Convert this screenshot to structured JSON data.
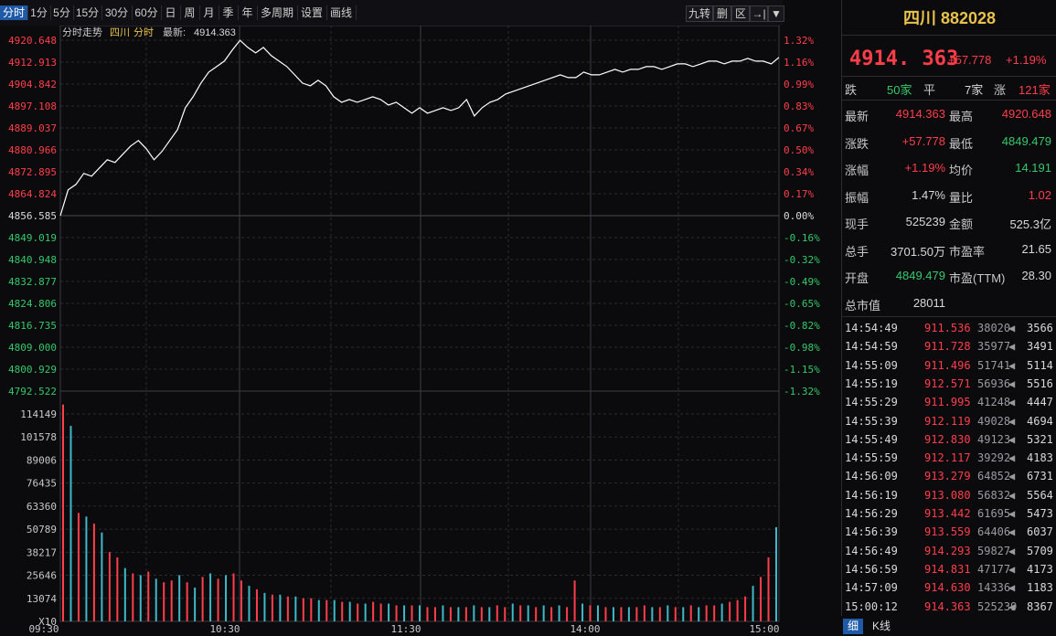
{
  "toolbar": {
    "periods": [
      "分时",
      "1分",
      "5分",
      "15分",
      "30分",
      "60分",
      "日",
      "周",
      "月",
      "季",
      "年",
      "多周期",
      "设置",
      "画线"
    ],
    "active_index": 0,
    "right_buttons": [
      "九转",
      "删",
      "区",
      "→|",
      "▼"
    ]
  },
  "chart_header": {
    "label": "分时走势",
    "name": "四川",
    "mode": "分时",
    "latest_label": "最新:",
    "latest_value": "4914.363"
  },
  "colors": {
    "up": "#ff3e4a",
    "down": "#35c86a",
    "price_line": "#ffffff",
    "grid": "#2a2a30",
    "title": "#e8c24a",
    "accent": "#1e5aa8"
  },
  "chart_data": {
    "type": "line",
    "title": "",
    "price_axis": [
      "4920.648",
      "4912.913",
      "4904.842",
      "4897.108",
      "4889.037",
      "4880.966",
      "4872.895",
      "4864.824",
      "4856.585",
      "4849.019",
      "4840.948",
      "4832.877",
      "4824.806",
      "4816.735",
      "4809.000",
      "4800.929",
      "4792.522"
    ],
    "pct_axis": [
      "1.32%",
      "1.16%",
      "0.99%",
      "0.83%",
      "0.67%",
      "0.50%",
      "0.34%",
      "0.17%",
      "0.00%",
      "-0.16%",
      "-0.32%",
      "-0.49%",
      "-0.65%",
      "-0.82%",
      "-0.98%",
      "-1.15%",
      "-1.32%"
    ],
    "prev_close": 4856.585,
    "ylim": [
      4792.522,
      4920.648
    ],
    "time_labels": [
      "09:30",
      "10:30",
      "11:30",
      "14:00",
      "15:00"
    ],
    "price": [
      4856.6,
      4866,
      4868,
      4872,
      4871,
      4874,
      4877,
      4876,
      4879,
      4882,
      4884,
      4881,
      4877,
      4880,
      4884,
      4888,
      4896,
      4900,
      4905,
      4909,
      4911,
      4913,
      4917,
      4920.6,
      4918,
      4916,
      4918,
      4915,
      4913,
      4911,
      4908,
      4905,
      4904,
      4906,
      4904,
      4900,
      4898,
      4899,
      4898,
      4899,
      4900,
      4899,
      4897,
      4898,
      4896,
      4894,
      4896,
      4894,
      4895,
      4896,
      4895,
      4896,
      4899,
      4893,
      4896,
      4898,
      4899,
      4901,
      4902,
      4903,
      4904,
      4905,
      4906,
      4907,
      4908,
      4907,
      4907,
      4909,
      4908,
      4908,
      4909,
      4910,
      4909,
      4910,
      4910,
      4911,
      4911,
      4910,
      4911,
      4912,
      4912,
      4911,
      4912,
      4913,
      4913,
      4912,
      4913,
      4913,
      4914,
      4913,
      4913,
      4912,
      4914.363
    ],
    "volume_axis": [
      "114149",
      "101578",
      "89006",
      "76435",
      "63360",
      "50789",
      "38217",
      "25646",
      "13074",
      "X10"
    ],
    "volume_ylim": [
      0,
      127000
    ],
    "volume": [
      122000,
      110000,
      61000,
      59000,
      55000,
      50000,
      39000,
      36000,
      30000,
      27000,
      26000,
      28000,
      24000,
      22000,
      23000,
      26000,
      22000,
      19000,
      25000,
      27000,
      24000,
      26000,
      27000,
      23000,
      20000,
      18000,
      16000,
      15000,
      15000,
      14000,
      14000,
      13000,
      13000,
      12000,
      12000,
      12000,
      11000,
      11000,
      10000,
      10000,
      11000,
      10000,
      10000,
      9000,
      9000,
      9000,
      9000,
      8000,
      8000,
      9000,
      8000,
      8000,
      8000,
      9000,
      8000,
      8000,
      9000,
      8000,
      10000,
      9000,
      9000,
      8000,
      9000,
      8000,
      9000,
      8000,
      23000,
      10000,
      9000,
      9000,
      8000,
      8000,
      8000,
      8000,
      8000,
      9000,
      8000,
      8000,
      9000,
      8000,
      8000,
      9000,
      8000,
      9000,
      9000,
      10000,
      11000,
      12000,
      14000,
      20000,
      25000,
      36000,
      53000
    ],
    "volume_up": [
      true,
      false,
      true,
      false,
      true,
      false,
      true,
      true,
      false,
      true,
      false,
      true,
      false,
      true,
      true,
      false,
      true,
      false,
      true,
      false,
      true,
      false,
      true,
      true,
      false,
      true,
      false,
      true,
      false,
      true,
      false,
      true,
      true,
      false,
      true,
      false,
      true,
      false,
      true,
      false,
      true,
      true,
      false,
      true,
      false,
      true,
      false,
      true,
      true,
      false,
      true,
      false,
      true,
      false,
      true,
      false,
      true,
      true,
      false,
      true,
      false,
      true,
      false,
      true,
      false,
      true,
      true,
      false,
      true,
      false,
      true,
      false,
      true,
      false,
      true,
      true,
      false,
      true,
      false,
      true,
      false,
      true,
      false,
      true,
      true,
      false,
      true,
      true,
      true,
      false,
      true,
      true,
      false
    ]
  },
  "right_panel": {
    "title": "四川",
    "code": "882028",
    "price": "4914. 363",
    "change": "+57.778",
    "change_pct": "+1.19%",
    "breadth": {
      "down_label": "跌",
      "down": "50家",
      "flat_label": "平",
      "flat": "7家",
      "up_label": "涨",
      "up": "121家"
    },
    "stats": [
      {
        "l1": "最新",
        "v1": "4914.363",
        "c1": "red",
        "l2": "最高",
        "v2": "4920.648",
        "c2": "red"
      },
      {
        "l1": "涨跌",
        "v1": "+57.778",
        "c1": "red",
        "l2": "最低",
        "v2": "4849.479",
        "c2": "green"
      },
      {
        "l1": "涨幅",
        "v1": "+1.19%",
        "c1": "red",
        "l2": "均价",
        "v2": "14.191",
        "c2": "green"
      },
      {
        "l1": "振幅",
        "v1": "1.47%",
        "c1": "white",
        "l2": "量比",
        "v2": "1.02",
        "c2": "red"
      },
      {
        "l1": "现手",
        "v1": "525239",
        "c1": "white",
        "l2": "金额",
        "v2": "525.3亿",
        "c2": "white"
      },
      {
        "l1": "总手",
        "v1": "3701.50万",
        "c1": "white",
        "l2": "市盈率",
        "v2": "21.65",
        "c2": "white"
      },
      {
        "l1": "开盘",
        "v1": "4849.479",
        "c1": "green",
        "l2": "市盈(TTM)",
        "v2": "28.30",
        "c2": "white"
      },
      {
        "l1": "总市值",
        "v1": "28011",
        "c1": "white",
        "l2": "",
        "v2": "",
        "c2": "white"
      }
    ],
    "ticks": [
      {
        "time": "14:54:49",
        "price": "911.536",
        "vol": "38020",
        "cnt": "3566"
      },
      {
        "time": "14:54:59",
        "price": "911.728",
        "vol": "35977",
        "cnt": "3491"
      },
      {
        "time": "14:55:09",
        "price": "911.496",
        "vol": "51741",
        "cnt": "5114"
      },
      {
        "time": "14:55:19",
        "price": "912.571",
        "vol": "56936",
        "cnt": "5516"
      },
      {
        "time": "14:55:29",
        "price": "911.995",
        "vol": "41248",
        "cnt": "4447"
      },
      {
        "time": "14:55:39",
        "price": "912.119",
        "vol": "49028",
        "cnt": "4694"
      },
      {
        "time": "14:55:49",
        "price": "912.830",
        "vol": "49123",
        "cnt": "5321"
      },
      {
        "time": "14:55:59",
        "price": "912.117",
        "vol": "39292",
        "cnt": "4183"
      },
      {
        "time": "14:56:09",
        "price": "913.279",
        "vol": "64852",
        "cnt": "6731"
      },
      {
        "time": "14:56:19",
        "price": "913.080",
        "vol": "56832",
        "cnt": "5564"
      },
      {
        "time": "14:56:29",
        "price": "913.442",
        "vol": "61695",
        "cnt": "5473"
      },
      {
        "time": "14:56:39",
        "price": "913.559",
        "vol": "64406",
        "cnt": "6037"
      },
      {
        "time": "14:56:49",
        "price": "914.293",
        "vol": "59827",
        "cnt": "5709"
      },
      {
        "time": "14:56:59",
        "price": "914.831",
        "vol": "47177",
        "cnt": "4173"
      },
      {
        "time": "14:57:09",
        "price": "914.630",
        "vol": "14336",
        "cnt": "1183"
      },
      {
        "time": "15:00:12",
        "price": "914.363",
        "vol": "525239",
        "cnt": "8367"
      }
    ],
    "bottom_tabs": [
      "细",
      "K线"
    ]
  }
}
